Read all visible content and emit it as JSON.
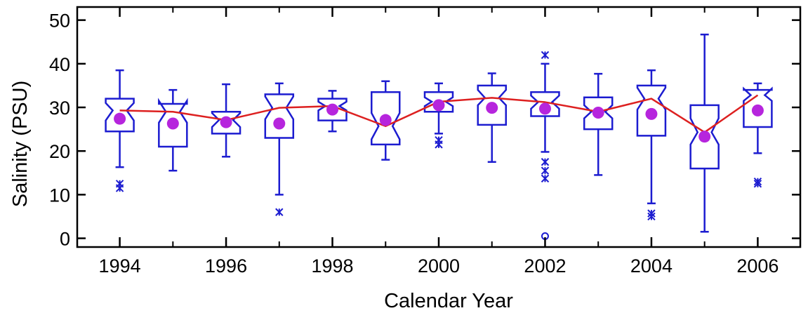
{
  "chart_data": {
    "type": "box",
    "xlabel": "Calendar Year",
    "ylabel": "Salinity (PSU)",
    "xlim": [
      1993.2,
      2006.8
    ],
    "ylim": [
      -2,
      53
    ],
    "x_ticks": [
      1994,
      1996,
      1998,
      2000,
      2002,
      2004,
      2006
    ],
    "y_ticks": [
      0,
      10,
      20,
      30,
      40,
      50
    ],
    "minor_x_ticks": [
      1995,
      1997,
      1999,
      2001,
      2003,
      2005
    ],
    "colors": {
      "box": "#1c1cd0",
      "mean_marker": "#b625dd",
      "median_line": "#dd2020",
      "frame": "#000000"
    },
    "boxes": [
      {
        "year": 1994,
        "whisker_low": 16.3,
        "q1": 24.5,
        "median": 29.3,
        "q3": 32.0,
        "whisker_high": 38.5,
        "notch_low": 27.0,
        "notch_high": 31.0,
        "mean": 27.4,
        "outliers": [
          {
            "y": 12.5,
            "marker": "star"
          },
          {
            "y": 11.5,
            "marker": "star"
          }
        ]
      },
      {
        "year": 1995,
        "whisker_low": 15.5,
        "q1": 21.0,
        "median": 29.0,
        "q3": 30.8,
        "whisker_high": 34.0,
        "notch_low": 26.5,
        "notch_high": 31.5,
        "mean": 26.3,
        "outliers": []
      },
      {
        "year": 1996,
        "whisker_low": 18.7,
        "q1": 24.0,
        "median": 27.1,
        "q3": 29.0,
        "whisker_high": 35.3,
        "notch_low": 25.5,
        "notch_high": 28.7,
        "mean": 26.6,
        "outliers": []
      },
      {
        "year": 1997,
        "whisker_low": 10.0,
        "q1": 23.0,
        "median": 29.9,
        "q3": 33.0,
        "whisker_high": 35.5,
        "notch_low": 27.3,
        "notch_high": 32.5,
        "mean": 26.3,
        "outliers": [
          {
            "y": 6.0,
            "marker": "star"
          }
        ]
      },
      {
        "year": 1998,
        "whisker_low": 24.5,
        "q1": 27.0,
        "median": 30.3,
        "q3": 32.0,
        "whisker_high": 33.8,
        "notch_low": 29.3,
        "notch_high": 31.3,
        "mean": 29.5,
        "outliers": []
      },
      {
        "year": 1999,
        "whisker_low": 18.0,
        "q1": 21.5,
        "median": 25.7,
        "q3": 33.5,
        "whisker_high": 36.0,
        "notch_low": 22.7,
        "notch_high": 28.7,
        "mean": 27.1,
        "outliers": []
      },
      {
        "year": 2000,
        "whisker_low": 24.0,
        "q1": 29.0,
        "median": 31.3,
        "q3": 33.5,
        "whisker_high": 35.5,
        "notch_low": 30.3,
        "notch_high": 32.3,
        "mean": 30.5,
        "outliers": [
          {
            "y": 22.5,
            "marker": "star"
          },
          {
            "y": 21.5,
            "marker": "star"
          }
        ]
      },
      {
        "year": 2001,
        "whisker_low": 17.5,
        "q1": 26.0,
        "median": 32.2,
        "q3": 35.0,
        "whisker_high": 37.8,
        "notch_low": 30.5,
        "notch_high": 34.0,
        "mean": 29.9,
        "outliers": []
      },
      {
        "year": 2002,
        "whisker_low": 19.8,
        "q1": 28.0,
        "median": 31.2,
        "q3": 33.5,
        "whisker_high": 40.0,
        "notch_low": 29.7,
        "notch_high": 32.7,
        "mean": 29.7,
        "outliers": [
          {
            "y": 42.0,
            "marker": "star"
          },
          {
            "y": 17.5,
            "marker": "star"
          },
          {
            "y": 15.5,
            "marker": "star"
          },
          {
            "y": 13.7,
            "marker": "star"
          },
          {
            "y": 0.5,
            "marker": "circle"
          }
        ]
      },
      {
        "year": 2003,
        "whisker_low": 14.5,
        "q1": 25.0,
        "median": 29.0,
        "q3": 32.3,
        "whisker_high": 37.7,
        "notch_low": 27.5,
        "notch_high": 30.5,
        "mean": 28.8,
        "outliers": []
      },
      {
        "year": 2004,
        "whisker_low": 8.0,
        "q1": 23.5,
        "median": 32.0,
        "q3": 35.0,
        "whisker_high": 38.5,
        "notch_low": 29.5,
        "notch_high": 34.5,
        "mean": 28.5,
        "outliers": [
          {
            "y": 5.7,
            "marker": "star"
          },
          {
            "y": 5.0,
            "marker": "star"
          }
        ]
      },
      {
        "year": 2005,
        "whisker_low": 1.5,
        "q1": 16.0,
        "median": 24.3,
        "q3": 30.5,
        "whisker_high": 46.7,
        "notch_low": 21.5,
        "notch_high": 27.5,
        "mean": 23.3,
        "outliers": []
      },
      {
        "year": 2006,
        "whisker_low": 19.5,
        "q1": 25.5,
        "median": 32.8,
        "q3": 34.0,
        "whisker_high": 35.5,
        "notch_low": 31.5,
        "notch_high": 34.3,
        "mean": 29.3,
        "outliers": [
          {
            "y": 13.0,
            "marker": "star"
          },
          {
            "y": 12.5,
            "marker": "star"
          }
        ]
      }
    ]
  }
}
